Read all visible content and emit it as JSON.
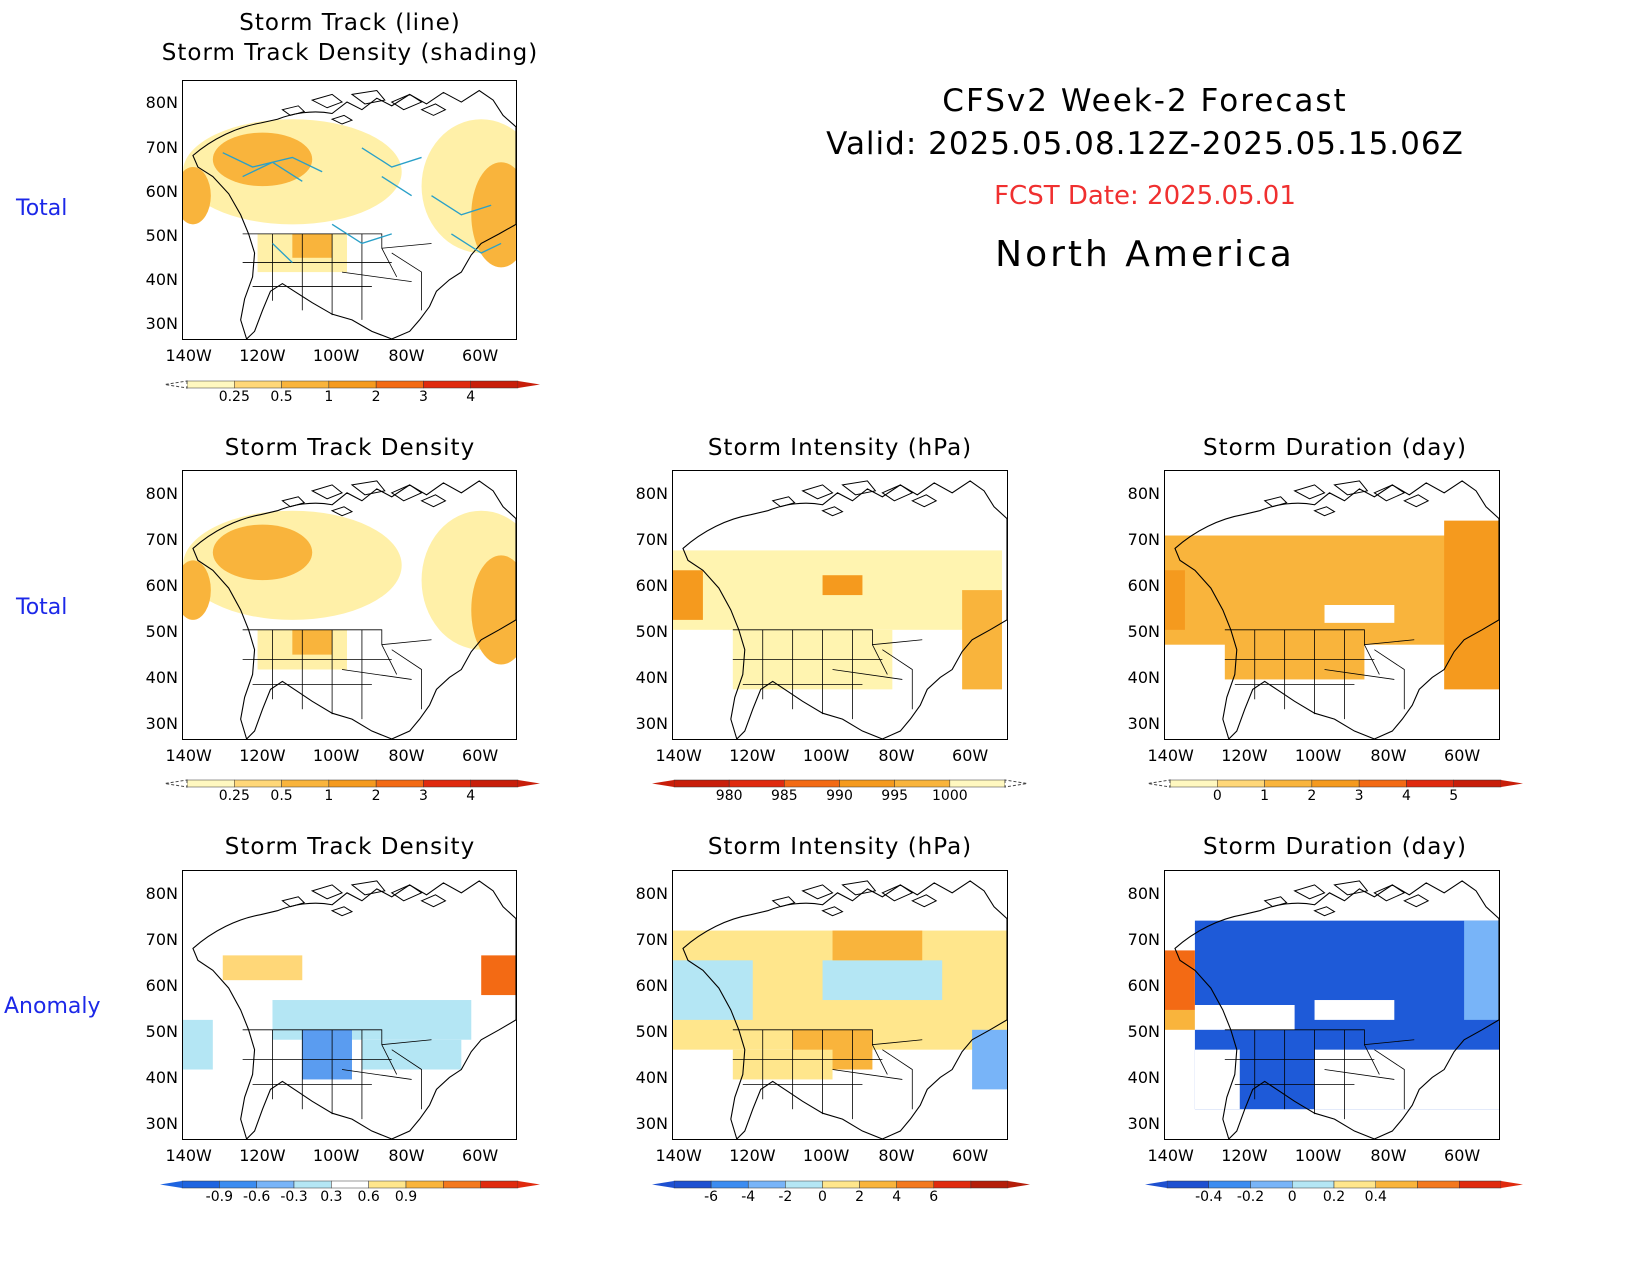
{
  "header": {
    "line1": "CFSv2 Week-2 Forecast",
    "line2": "Valid: 2025.05.08.12Z-2025.05.15.06Z",
    "fcst": "FCST Date: 2025.05.01",
    "region": "North America"
  },
  "row_labels": {
    "r1": "Total",
    "r2": "Total",
    "r3": "Anomaly"
  },
  "panels": {
    "p1": {
      "title1": "Storm Track (line)",
      "title2": "Storm Track Density (shading)"
    },
    "p2": {
      "title": "Storm Track Density"
    },
    "p3": {
      "title": "Storm Intensity (hPa)"
    },
    "p4": {
      "title": "Storm Duration (day)"
    },
    "p5": {
      "title": "Storm Track Density"
    },
    "p6": {
      "title": "Storm Intensity (hPa)"
    },
    "p7": {
      "title": "Storm Duration (day)"
    }
  },
  "axes": {
    "lat_labels": [
      "80N",
      "70N",
      "60N",
      "50N",
      "40N",
      "30N"
    ],
    "lon_labels": [
      "140W",
      "120W",
      "100W",
      "80W",
      "60W"
    ]
  },
  "colorbars": {
    "density": {
      "ticks": [
        "0.25",
        "0.5",
        "1",
        "2",
        "3",
        "4"
      ],
      "colors": [
        "#fff8c0",
        "#ffd778",
        "#f9b43c",
        "#f59a1e",
        "#f36a14",
        "#e02a0e",
        "#c81e0a"
      ]
    },
    "intensity": {
      "ticks": [
        "980",
        "985",
        "990",
        "995",
        "1000"
      ],
      "colors": [
        "#c81e0a",
        "#e02a0e",
        "#f36a14",
        "#f59a1e",
        "#f9b43c",
        "#fff8c0"
      ]
    },
    "duration": {
      "ticks": [
        "0",
        "1",
        "2",
        "3",
        "4",
        "5"
      ],
      "colors": [
        "#fff8c0",
        "#ffd778",
        "#f9b43c",
        "#f59a1e",
        "#f36a14",
        "#e02a0e",
        "#c81e0a"
      ]
    },
    "anom_density": {
      "ticks": [
        "-0.9",
        "-0.6",
        "-0.3",
        "0.3",
        "0.6",
        "0.9"
      ],
      "colors": [
        "#1e64e0",
        "#3c8cf0",
        "#78b4f8",
        "#b4e6f4",
        "#ffffff",
        "#ffe68c",
        "#f9b43c",
        "#f3781e",
        "#e02a0e"
      ]
    },
    "anom_intensity": {
      "ticks": [
        "-6",
        "-4",
        "-2",
        "0",
        "2",
        "4",
        "6"
      ],
      "colors": [
        "#1e50d0",
        "#3c8cf0",
        "#78b4f8",
        "#b4e6f4",
        "#ffe68c",
        "#f9b43c",
        "#f3781e",
        "#e02a0e",
        "#b41e0a"
      ]
    },
    "anom_duration": {
      "ticks": [
        "-0.4",
        "-0.2",
        "0",
        "0.2",
        "0.4"
      ],
      "colors": [
        "#1e50d0",
        "#3c8cf0",
        "#78b4f8",
        "#b4e6f4",
        "#ffe68c",
        "#f9b43c",
        "#f3781e",
        "#e02a0e"
      ]
    }
  }
}
